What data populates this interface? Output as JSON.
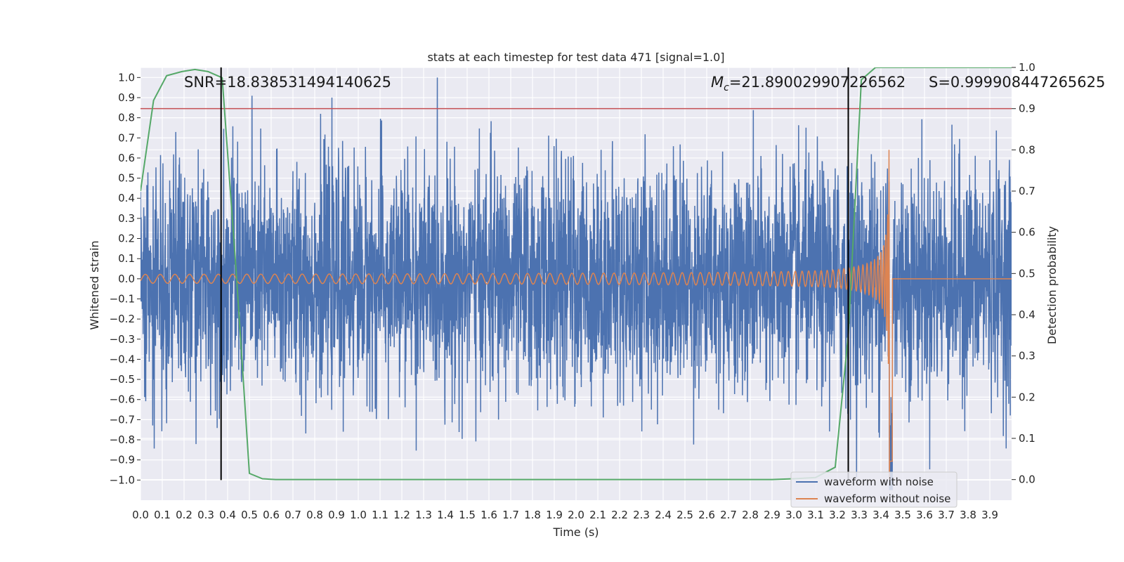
{
  "chart_data": {
    "type": "line",
    "title": "stats at each timestep for test data 471 [signal=1.0]",
    "xlabel": "Time (s)",
    "ylabel": "Whitened strain",
    "y2label": "Detection probability",
    "xlim": [
      0.0,
      4.0
    ],
    "ylim": [
      -1.1,
      1.05
    ],
    "y2lim": [
      -0.05,
      1.0
    ],
    "xticks": [
      "0.0",
      "0.1",
      "0.2",
      "0.3",
      "0.4",
      "0.5",
      "0.6",
      "0.7",
      "0.8",
      "0.9",
      "1.0",
      "1.1",
      "1.2",
      "1.3",
      "1.4",
      "1.5",
      "1.6",
      "1.7",
      "1.8",
      "1.9",
      "2.0",
      "2.1",
      "2.2",
      "2.3",
      "2.4",
      "2.5",
      "2.6",
      "2.7",
      "2.8",
      "2.9",
      "3.0",
      "3.1",
      "3.2",
      "3.3",
      "3.4",
      "3.5",
      "3.6",
      "3.7",
      "3.8",
      "3.9"
    ],
    "yticks": [
      "1.0",
      "0.9",
      "0.8",
      "0.7",
      "0.6",
      "0.5",
      "0.4",
      "0.3",
      "0.2",
      "0.1",
      "0.0",
      "−0.1",
      "−0.2",
      "−0.3",
      "−0.4",
      "−0.5",
      "−0.6",
      "−0.7",
      "−0.8",
      "−0.9",
      "−1.0"
    ],
    "y2ticks": [
      "1.0",
      "0.9",
      "0.8",
      "0.7",
      "0.6",
      "0.5",
      "0.4",
      "0.3",
      "0.2",
      "0.1",
      "0.0"
    ],
    "grid": true,
    "legend_position": "lower-right",
    "annotations": {
      "snr": "SNR=18.838531494140625",
      "mc": "M",
      "mc_sub": "c",
      "mc_value": "=21.890029907226562",
      "s": "S=0.999908447265625"
    },
    "vlines_x": [
      0.37,
      3.25
    ],
    "threshold_y2": 0.9,
    "series": [
      {
        "name": "waveform with noise",
        "color": "#4c72b0",
        "style": "noise",
        "amplitude": 0.28,
        "x_range": [
          0.0,
          4.0
        ]
      },
      {
        "name": "waveform without noise",
        "color": "#dd8452",
        "style": "chirp",
        "merger_x": 3.44,
        "x_range": [
          0.0,
          4.0
        ]
      },
      {
        "name": "",
        "axis": "y2",
        "color": "#55a868",
        "x": [
          0.0,
          0.06,
          0.12,
          0.19,
          0.25,
          0.31,
          0.375,
          0.44,
          0.5,
          0.56,
          0.62,
          1.0,
          2.0,
          2.9,
          3.0,
          3.1,
          3.19,
          3.25,
          3.31,
          3.375,
          3.44,
          3.5,
          3.9,
          4.0
        ],
        "y": [
          0.7,
          0.92,
          0.98,
          0.99,
          0.995,
          0.99,
          0.975,
          0.5,
          0.015,
          0.002,
          0.0,
          0.0,
          0.0,
          0.0,
          0.002,
          0.005,
          0.03,
          0.35,
          0.97,
          1.0,
          1.0,
          1.0,
          1.0,
          1.0
        ]
      }
    ]
  }
}
